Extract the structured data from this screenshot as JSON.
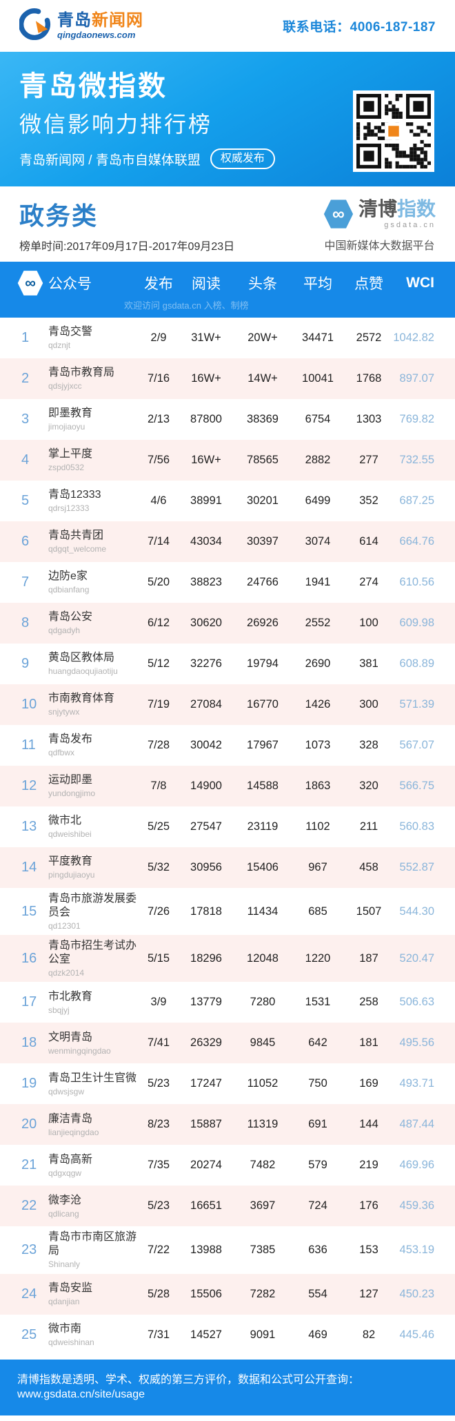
{
  "topbar": {
    "logo_cn_1": "青岛",
    "logo_cn_2": "新闻网",
    "logo_domain": "qingdaonews.com",
    "contact": "联系电话：4006-187-187"
  },
  "banner": {
    "title": "青岛微指数",
    "subtitle": "微信影响力排行榜",
    "byline": "青岛新闻网 / 青岛市自媒体联盟",
    "badge": "权威发布"
  },
  "section": {
    "category": "政务类",
    "period": "榜单时间:2017年09月17日-2017年09月23日",
    "brand": {
      "name_dark": "清博",
      "name_light": "指数",
      "infinity": "∞",
      "domain": "gsdata.cn",
      "tagline": "中国新媒体大数据平台"
    }
  },
  "table": {
    "headers": {
      "account": "公众号",
      "publish": "发布",
      "read": "阅读",
      "headline": "头条",
      "average": "平均",
      "likes": "点赞",
      "wci": "WCI"
    },
    "watermark": "欢迎访问 gsdata.cn 入榜、制榜",
    "rows": [
      {
        "rank": 1,
        "name": "青岛交警",
        "id": "qdznjt",
        "publish": "2/9",
        "read": "31W+",
        "headline": "20W+",
        "average": "34471",
        "likes": "2572",
        "wci": "1042.82"
      },
      {
        "rank": 2,
        "name": "青岛市教育局",
        "id": "qdsjyjxcc",
        "publish": "7/16",
        "read": "16W+",
        "headline": "14W+",
        "average": "10041",
        "likes": "1768",
        "wci": "897.07"
      },
      {
        "rank": 3,
        "name": "即墨教育",
        "id": "jimojiaoyu",
        "publish": "2/13",
        "read": "87800",
        "headline": "38369",
        "average": "6754",
        "likes": "1303",
        "wci": "769.82"
      },
      {
        "rank": 4,
        "name": "掌上平度",
        "id": "zspd0532",
        "publish": "7/56",
        "read": "16W+",
        "headline": "78565",
        "average": "2882",
        "likes": "277",
        "wci": "732.55"
      },
      {
        "rank": 5,
        "name": "青岛12333",
        "id": "qdrsj12333",
        "publish": "4/6",
        "read": "38991",
        "headline": "30201",
        "average": "6499",
        "likes": "352",
        "wci": "687.25"
      },
      {
        "rank": 6,
        "name": "青岛共青团",
        "id": "qdgqt_welcome",
        "publish": "7/14",
        "read": "43034",
        "headline": "30397",
        "average": "3074",
        "likes": "614",
        "wci": "664.76"
      },
      {
        "rank": 7,
        "name": "边防e家",
        "id": "qdbianfang",
        "publish": "5/20",
        "read": "38823",
        "headline": "24766",
        "average": "1941",
        "likes": "274",
        "wci": "610.56"
      },
      {
        "rank": 8,
        "name": "青岛公安",
        "id": "qdgadyh",
        "publish": "6/12",
        "read": "30620",
        "headline": "26926",
        "average": "2552",
        "likes": "100",
        "wci": "609.98"
      },
      {
        "rank": 9,
        "name": "黄岛区教体局",
        "id": "huangdaoqujiaotiju",
        "publish": "5/12",
        "read": "32276",
        "headline": "19794",
        "average": "2690",
        "likes": "381",
        "wci": "608.89"
      },
      {
        "rank": 10,
        "name": "市南教育体育",
        "id": "snjytywx",
        "publish": "7/19",
        "read": "27084",
        "headline": "16770",
        "average": "1426",
        "likes": "300",
        "wci": "571.39"
      },
      {
        "rank": 11,
        "name": "青岛发布",
        "id": "qdfbwx",
        "publish": "7/28",
        "read": "30042",
        "headline": "17967",
        "average": "1073",
        "likes": "328",
        "wci": "567.07"
      },
      {
        "rank": 12,
        "name": "运动即墨",
        "id": "yundongjimo",
        "publish": "7/8",
        "read": "14900",
        "headline": "14588",
        "average": "1863",
        "likes": "320",
        "wci": "566.75"
      },
      {
        "rank": 13,
        "name": "微市北",
        "id": "qdweishibei",
        "publish": "5/25",
        "read": "27547",
        "headline": "23119",
        "average": "1102",
        "likes": "211",
        "wci": "560.83"
      },
      {
        "rank": 14,
        "name": "平度教育",
        "id": "pingdujiaoyu",
        "publish": "5/32",
        "read": "30956",
        "headline": "15406",
        "average": "967",
        "likes": "458",
        "wci": "552.87"
      },
      {
        "rank": 15,
        "name": "青岛市旅游发展委员会",
        "id": "qd12301",
        "publish": "7/26",
        "read": "17818",
        "headline": "11434",
        "average": "685",
        "likes": "1507",
        "wci": "544.30"
      },
      {
        "rank": 16,
        "name": "青岛市招生考试办公室",
        "id": "qdzk2014",
        "publish": "5/15",
        "read": "18296",
        "headline": "12048",
        "average": "1220",
        "likes": "187",
        "wci": "520.47"
      },
      {
        "rank": 17,
        "name": "市北教育",
        "id": "sbqjyj",
        "publish": "3/9",
        "read": "13779",
        "headline": "7280",
        "average": "1531",
        "likes": "258",
        "wci": "506.63"
      },
      {
        "rank": 18,
        "name": "文明青岛",
        "id": "wenmingqingdao",
        "publish": "7/41",
        "read": "26329",
        "headline": "9845",
        "average": "642",
        "likes": "181",
        "wci": "495.56"
      },
      {
        "rank": 19,
        "name": "青岛卫生计生官微",
        "id": "qdwsjsgw",
        "publish": "5/23",
        "read": "17247",
        "headline": "11052",
        "average": "750",
        "likes": "169",
        "wci": "493.71"
      },
      {
        "rank": 20,
        "name": "廉洁青岛",
        "id": "lianjieqingdao",
        "publish": "8/23",
        "read": "15887",
        "headline": "11319",
        "average": "691",
        "likes": "144",
        "wci": "487.44"
      },
      {
        "rank": 21,
        "name": "青岛高新",
        "id": "qdgxqgw",
        "publish": "7/35",
        "read": "20274",
        "headline": "7482",
        "average": "579",
        "likes": "219",
        "wci": "469.96"
      },
      {
        "rank": 22,
        "name": "微李沧",
        "id": "qdlicang",
        "publish": "5/23",
        "read": "16651",
        "headline": "3697",
        "average": "724",
        "likes": "176",
        "wci": "459.36"
      },
      {
        "rank": 23,
        "name": "青岛市市南区旅游局",
        "id": "Shinanly",
        "publish": "7/22",
        "read": "13988",
        "headline": "7385",
        "average": "636",
        "likes": "153",
        "wci": "453.19"
      },
      {
        "rank": 24,
        "name": "青岛安监",
        "id": "qdanjian",
        "publish": "5/28",
        "read": "15506",
        "headline": "7282",
        "average": "554",
        "likes": "127",
        "wci": "450.23"
      },
      {
        "rank": 25,
        "name": "微市南",
        "id": "qdweishinan",
        "publish": "7/31",
        "read": "14527",
        "headline": "9091",
        "average": "469",
        "likes": "82",
        "wci": "445.46"
      }
    ]
  },
  "footer": {
    "note": "清博指数是透明、学术、权威的第三方评价，数据和公式可公开查询：www.gsdata.cn/site/usage"
  },
  "colors": {
    "accent_blue": "#1689e8",
    "banner_gradient_top": "#3ab7f5",
    "banner_gradient_bottom": "#0b80d8",
    "category_blue": "#2b7fc8",
    "row_alt_pink": "#fdf0ee",
    "rank_blue": "#6ba3d8",
    "wci_blue": "#8ab5da",
    "logo_blue": "#1b62ad",
    "logo_orange": "#f08519",
    "contact_blue": "#1a86d9"
  }
}
